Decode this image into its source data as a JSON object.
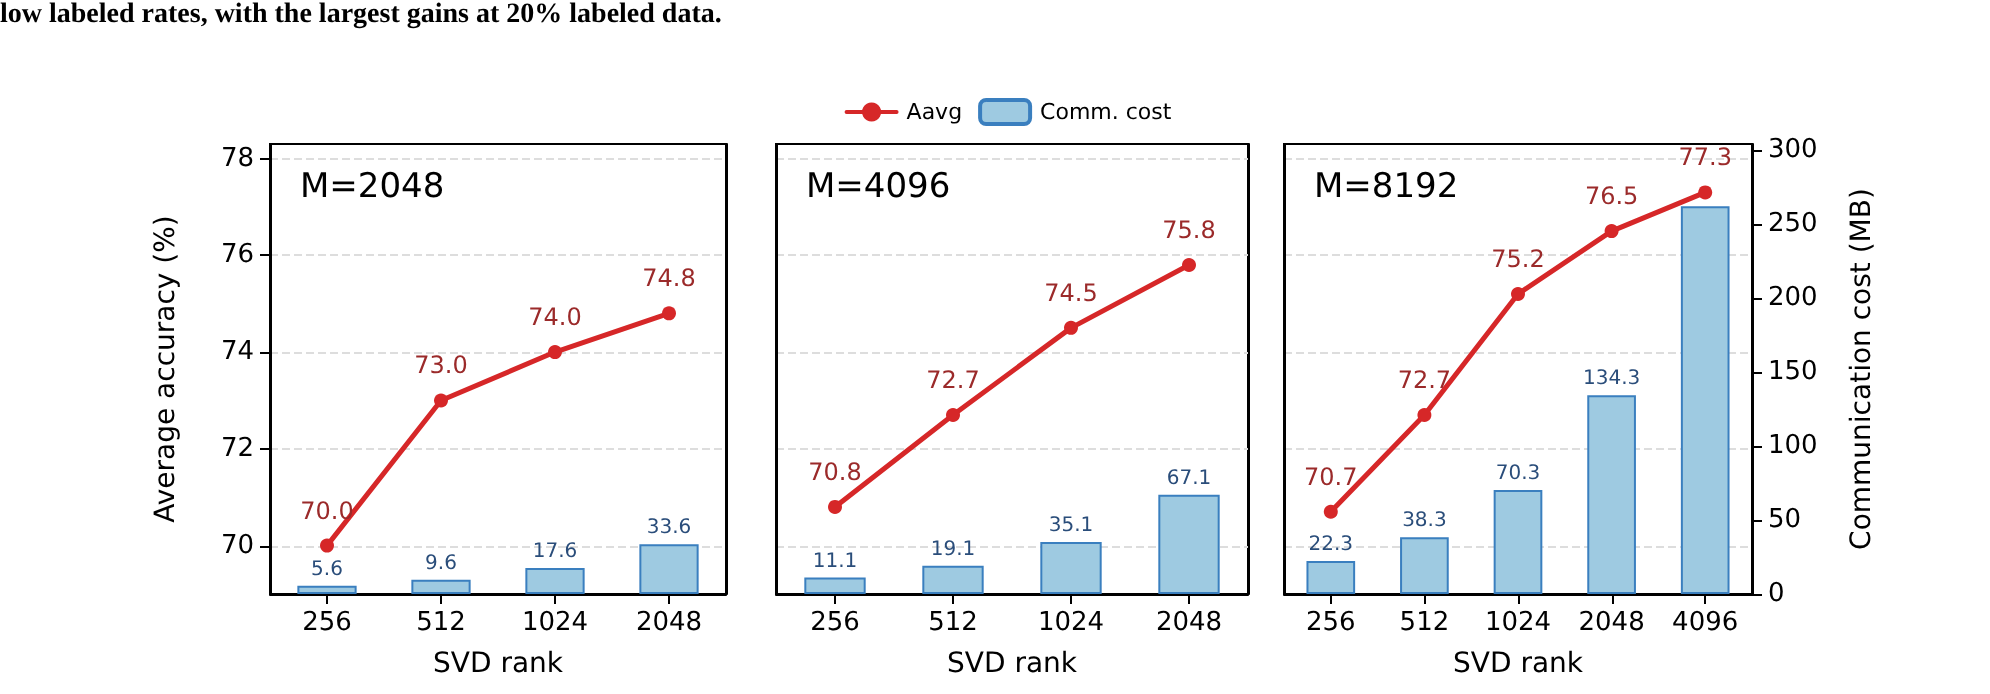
{
  "chart_data": [
    {
      "type": "bar",
      "title": "M=2048",
      "annotations": [
        "low labeled rates, with the largest gains at 20% labeled data."
      ],
      "xlabel": "SVD rank",
      "ylabel": "Average accuracy (%)",
      "categories": [
        "256",
        "512",
        "1024",
        "2048"
      ],
      "series": [
        {
          "type": "line",
          "color": "#d62728",
          "values": [
            70.0,
            73.0,
            74.0,
            74.8
          ],
          "value_labels": [
            "70.0",
            "73.0",
            "74.0",
            "74.8"
          ]
        },
        {
          "color": "#9ecae1",
          "axis": "y2",
          "values": [
            5.6,
            9.6,
            17.6,
            33.6
          ],
          "value_labels": [
            "5.6",
            "9.6",
            "17.6",
            "33.6"
          ]
        }
      ],
      "ylim": [
        69,
        78.3
      ],
      "yticks": [
        70,
        72,
        74,
        76,
        78
      ],
      "y2lim": [
        0,
        304
      ],
      "tick_labels": [
        "x",
        "y"
      ],
      "grid": "y",
      "marker": "circle",
      "line_style": "solid"
    },
    {
      "type": "bar",
      "title": "M=4096",
      "xlabel": "SVD rank",
      "categories": [
        "256",
        "512",
        "1024",
        "2048"
      ],
      "series": [
        {
          "type": "line",
          "name": "Aavg",
          "color": "#d62728",
          "values": [
            70.8,
            72.7,
            74.5,
            75.8
          ],
          "value_labels": [
            "70.8",
            "72.7",
            "74.5",
            "75.8"
          ]
        },
        {
          "name": "Comm. cost",
          "color": "#9ecae1",
          "axis": "y2",
          "values": [
            11.1,
            19.1,
            35.1,
            67.1
          ],
          "value_labels": [
            "11.1",
            "19.1",
            "35.1",
            "67.1"
          ]
        }
      ],
      "ylim": [
        69,
        78.3
      ],
      "y2lim": [
        0,
        304
      ],
      "tick_labels": [
        "x"
      ],
      "grid": "y",
      "marker": "circle",
      "line_style": "solid",
      "legend": "top"
    },
    {
      "type": "bar",
      "title": "M=8192",
      "xlabel": "SVD rank",
      "y2label": "Communication cost (MB)",
      "categories": [
        "256",
        "512",
        "1024",
        "2048",
        "4096"
      ],
      "series": [
        {
          "type": "line",
          "color": "#d62728",
          "values": [
            70.7,
            72.7,
            75.2,
            76.5,
            77.3
          ],
          "value_labels": [
            "70.7",
            "72.7",
            "75.2",
            "76.5",
            "77.3"
          ]
        },
        {
          "color": "#9ecae1",
          "axis": "y2",
          "values": [
            22.3,
            38.3,
            70.3,
            134.3,
            262
          ],
          "value_labels": [
            "22.3",
            "38.3",
            "70.3",
            "134.3",
            null
          ]
        }
      ],
      "ylim": [
        69,
        78.3
      ],
      "y2lim": [
        0,
        304
      ],
      "y2ticks": [
        0,
        50,
        100,
        150,
        200,
        250,
        300
      ],
      "tick_labels": [
        "x",
        "y2"
      ],
      "grid": "y",
      "marker": "circle",
      "line_style": "solid"
    }
  ]
}
